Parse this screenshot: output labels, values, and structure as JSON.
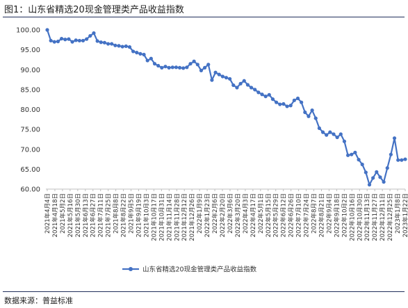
{
  "title": "图1：山东省精选20现金管理类产品收益指数",
  "source": "数据来源：普益标准",
  "colors": {
    "series": "#4472c4",
    "rule": "#1f2d5a",
    "axis": "#bfbfbf"
  },
  "chart_data": {
    "type": "line",
    "ylim": [
      60,
      100
    ],
    "yticks": [
      "100.00",
      "95.00",
      "90.00",
      "85.00",
      "80.00",
      "75.00",
      "70.00",
      "65.00",
      "60.00"
    ],
    "ytick_values": [
      100,
      95,
      90,
      85,
      80,
      75,
      70,
      65,
      60
    ],
    "x_tick_labels": [
      "2021年4月4日",
      "2021年4月18日",
      "2021年5月2日",
      "2021年5月16日",
      "2021年5月30日",
      "2021年6月13日",
      "2021年6月27日",
      "2021年7月11日",
      "2021年7月25日",
      "2021年8月8日",
      "2021年8月22日",
      "2021年9月5日",
      "2021年9月19日",
      "2021年10月3日",
      "2021年10月17日",
      "2021年10月31日",
      "2021年11月14日",
      "2021年11月28日",
      "2021年12月12日",
      "2021年12月26日",
      "2022年1月9日",
      "2022年1月23日",
      "2022年2月6日",
      "2022年2月20日",
      "2022年3月6日",
      "2022年3月20日",
      "2022年4月3日",
      "2022年4月17日",
      "2022年5月1日",
      "2022年5月15日",
      "2022年5月29日",
      "2022年6月12日",
      "2022年6月26日",
      "2022年7月10日",
      "2022年7月24日",
      "2022年8月7日",
      "2022年8月21日",
      "2022年9月4日",
      "2022年9月18日",
      "2022年10月2日",
      "2022年10月16日",
      "2022年10月30日",
      "2022年11月13日",
      "2022年11月27日",
      "2022年12月11日",
      "2022年12月25日",
      "2023年1月8日",
      "2023年1月22日"
    ],
    "series": [
      {
        "name": "山东省精选20现金管理类产品收益指数",
        "values": [
          100.0,
          97.3,
          97.0,
          97.1,
          97.8,
          97.6,
          97.7,
          97.0,
          97.4,
          97.3,
          97.3,
          97.7,
          98.5,
          99.2,
          97.2,
          96.9,
          96.8,
          96.5,
          96.5,
          96.1,
          96.0,
          95.8,
          95.9,
          95.7,
          94.6,
          94.3,
          94.0,
          93.8,
          92.3,
          92.8,
          91.5,
          91.0,
          90.5,
          90.8,
          90.5,
          90.6,
          90.6,
          90.5,
          90.4,
          90.6,
          91.5,
          92.1,
          91.3,
          89.8,
          90.5,
          91.3,
          87.4,
          89.3,
          88.8,
          88.3,
          88.0,
          87.7,
          86.1,
          85.5,
          86.5,
          87.2,
          86.2,
          85.5,
          85.0,
          84.3,
          83.8,
          83.3,
          83.7,
          82.6,
          81.8,
          81.3,
          81.4,
          80.8,
          81.0,
          82.3,
          82.8,
          81.8,
          79.3,
          78.3,
          79.8,
          77.8,
          75.3,
          74.3,
          73.6,
          74.3,
          73.8,
          73.0,
          73.8,
          72.0,
          68.5,
          68.7,
          69.2,
          67.4,
          66.2,
          64.2,
          61.1,
          62.8,
          64.3,
          63.0,
          61.8,
          65.3,
          68.7,
          72.8,
          67.3,
          67.3,
          67.5
        ]
      }
    ],
    "legend": "bottom",
    "grid": false
  }
}
